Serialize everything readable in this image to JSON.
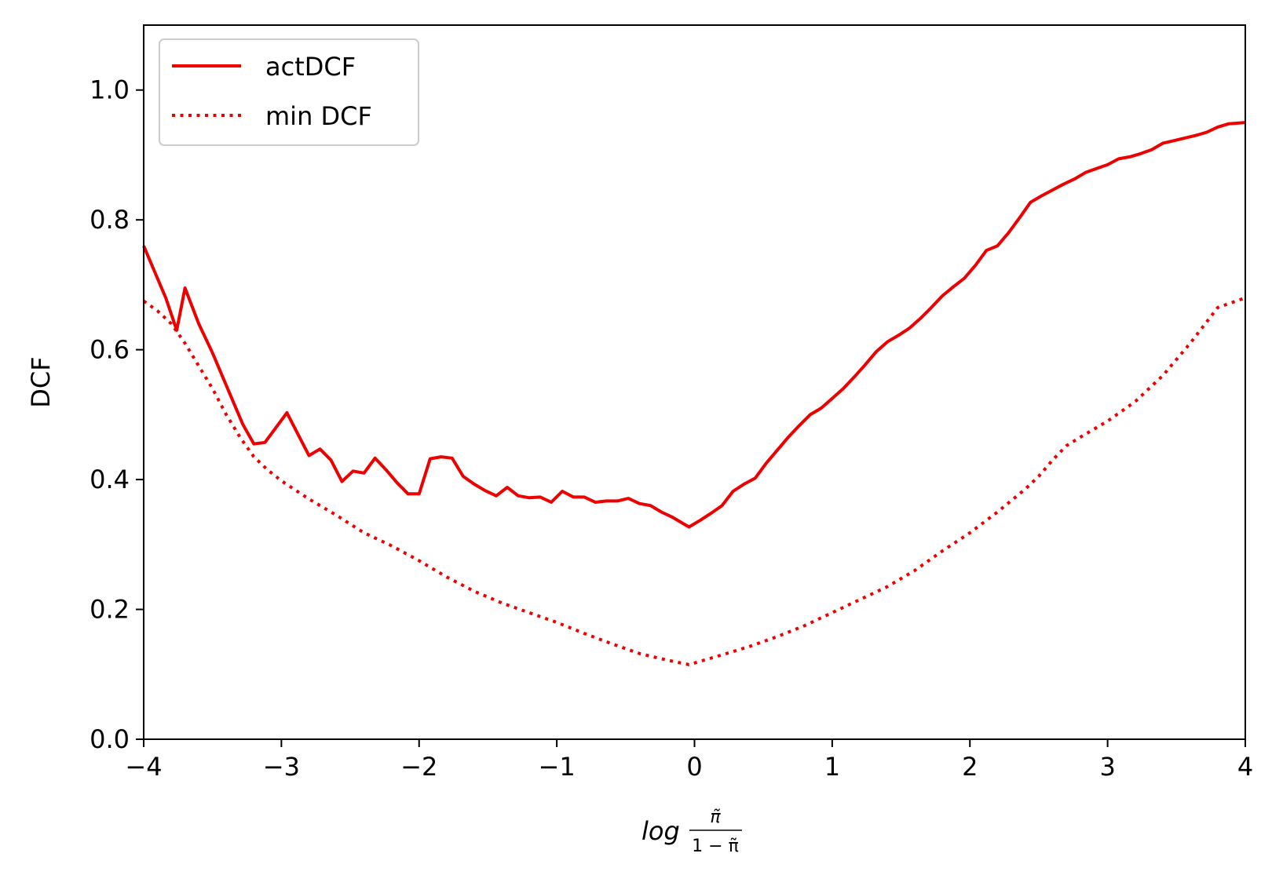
{
  "chart_data": {
    "type": "line",
    "xlabel": "log π̃ / (1 − π̃)",
    "xlabel_parts": {
      "base": "log",
      "numerator": "π̃",
      "denominator": "1 − π̃"
    },
    "ylabel": "DCF",
    "xlim": [
      -4,
      4
    ],
    "ylim": [
      0,
      1.1
    ],
    "x_ticks": [
      -4,
      -3,
      -2,
      -1,
      0,
      1,
      2,
      3,
      4
    ],
    "x_tick_labels": [
      "−4",
      "−3",
      "−2",
      "−1",
      "0",
      "1",
      "2",
      "3",
      "4"
    ],
    "y_ticks": [
      0.0,
      0.2,
      0.4,
      0.6,
      0.8,
      1.0
    ],
    "y_tick_labels": [
      "0.0",
      "0.2",
      "0.4",
      "0.6",
      "0.8",
      "1.0"
    ],
    "grid": false,
    "legend_position": "top-left",
    "series": [
      {
        "name": "actDCF",
        "color": "#ee0000",
        "style": "solid",
        "points": [
          [
            -4.0,
            0.76
          ],
          [
            -3.92,
            0.72
          ],
          [
            -3.84,
            0.68
          ],
          [
            -3.76,
            0.63
          ],
          [
            -3.7,
            0.695
          ],
          [
            -3.6,
            0.64
          ],
          [
            -3.5,
            0.595
          ],
          [
            -3.44,
            0.565
          ],
          [
            -3.36,
            0.525
          ],
          [
            -3.28,
            0.485
          ],
          [
            -3.2,
            0.455
          ],
          [
            -3.12,
            0.457
          ],
          [
            -3.04,
            0.48
          ],
          [
            -2.96,
            0.503
          ],
          [
            -2.88,
            0.47
          ],
          [
            -2.8,
            0.437
          ],
          [
            -2.72,
            0.447
          ],
          [
            -2.64,
            0.43
          ],
          [
            -2.56,
            0.397
          ],
          [
            -2.48,
            0.413
          ],
          [
            -2.4,
            0.41
          ],
          [
            -2.32,
            0.433
          ],
          [
            -2.24,
            0.415
          ],
          [
            -2.16,
            0.395
          ],
          [
            -2.08,
            0.378
          ],
          [
            -2.0,
            0.378
          ],
          [
            -1.92,
            0.432
          ],
          [
            -1.84,
            0.435
          ],
          [
            -1.76,
            0.433
          ],
          [
            -1.68,
            0.405
          ],
          [
            -1.6,
            0.393
          ],
          [
            -1.52,
            0.383
          ],
          [
            -1.44,
            0.375
          ],
          [
            -1.36,
            0.388
          ],
          [
            -1.28,
            0.375
          ],
          [
            -1.2,
            0.372
          ],
          [
            -1.12,
            0.373
          ],
          [
            -1.04,
            0.365
          ],
          [
            -0.96,
            0.382
          ],
          [
            -0.88,
            0.373
          ],
          [
            -0.8,
            0.373
          ],
          [
            -0.72,
            0.365
          ],
          [
            -0.64,
            0.367
          ],
          [
            -0.56,
            0.367
          ],
          [
            -0.48,
            0.371
          ],
          [
            -0.4,
            0.363
          ],
          [
            -0.32,
            0.36
          ],
          [
            -0.24,
            0.35
          ],
          [
            -0.16,
            0.342
          ],
          [
            -0.04,
            0.327
          ],
          [
            0.04,
            0.337
          ],
          [
            0.12,
            0.348
          ],
          [
            0.2,
            0.36
          ],
          [
            0.28,
            0.382
          ],
          [
            0.36,
            0.393
          ],
          [
            0.44,
            0.402
          ],
          [
            0.52,
            0.425
          ],
          [
            0.6,
            0.445
          ],
          [
            0.68,
            0.465
          ],
          [
            0.76,
            0.483
          ],
          [
            0.84,
            0.5
          ],
          [
            0.92,
            0.51
          ],
          [
            1.0,
            0.525
          ],
          [
            1.08,
            0.54
          ],
          [
            1.16,
            0.558
          ],
          [
            1.24,
            0.577
          ],
          [
            1.32,
            0.597
          ],
          [
            1.4,
            0.612
          ],
          [
            1.48,
            0.622
          ],
          [
            1.56,
            0.633
          ],
          [
            1.64,
            0.648
          ],
          [
            1.72,
            0.665
          ],
          [
            1.8,
            0.683
          ],
          [
            1.88,
            0.697
          ],
          [
            1.96,
            0.71
          ],
          [
            2.04,
            0.73
          ],
          [
            2.12,
            0.753
          ],
          [
            2.2,
            0.76
          ],
          [
            2.28,
            0.78
          ],
          [
            2.36,
            0.803
          ],
          [
            2.44,
            0.827
          ],
          [
            2.52,
            0.837
          ],
          [
            2.6,
            0.846
          ],
          [
            2.68,
            0.855
          ],
          [
            2.76,
            0.863
          ],
          [
            2.84,
            0.873
          ],
          [
            2.92,
            0.879
          ],
          [
            3.0,
            0.885
          ],
          [
            3.08,
            0.894
          ],
          [
            3.16,
            0.897
          ],
          [
            3.24,
            0.902
          ],
          [
            3.32,
            0.908
          ],
          [
            3.4,
            0.918
          ],
          [
            3.48,
            0.922
          ],
          [
            3.56,
            0.926
          ],
          [
            3.64,
            0.93
          ],
          [
            3.72,
            0.935
          ],
          [
            3.8,
            0.943
          ],
          [
            3.88,
            0.948
          ],
          [
            4.0,
            0.95
          ]
        ]
      },
      {
        "name": "min DCF",
        "color": "#ee0000",
        "style": "dotted",
        "points": [
          [
            -4.0,
            0.675
          ],
          [
            -3.9,
            0.66
          ],
          [
            -3.8,
            0.64
          ],
          [
            -3.7,
            0.61
          ],
          [
            -3.6,
            0.575
          ],
          [
            -3.5,
            0.54
          ],
          [
            -3.4,
            0.5
          ],
          [
            -3.3,
            0.465
          ],
          [
            -3.2,
            0.435
          ],
          [
            -3.1,
            0.415
          ],
          [
            -3.0,
            0.398
          ],
          [
            -2.8,
            0.37
          ],
          [
            -2.6,
            0.345
          ],
          [
            -2.4,
            0.318
          ],
          [
            -2.2,
            0.298
          ],
          [
            -2.0,
            0.275
          ],
          [
            -1.8,
            0.25
          ],
          [
            -1.6,
            0.228
          ],
          [
            -1.4,
            0.21
          ],
          [
            -1.2,
            0.195
          ],
          [
            -1.0,
            0.18
          ],
          [
            -0.8,
            0.163
          ],
          [
            -0.6,
            0.147
          ],
          [
            -0.4,
            0.132
          ],
          [
            -0.2,
            0.122
          ],
          [
            -0.04,
            0.115
          ],
          [
            0.2,
            0.13
          ],
          [
            0.4,
            0.143
          ],
          [
            0.6,
            0.158
          ],
          [
            0.8,
            0.175
          ],
          [
            1.0,
            0.195
          ],
          [
            1.2,
            0.215
          ],
          [
            1.4,
            0.235
          ],
          [
            1.6,
            0.26
          ],
          [
            1.8,
            0.29
          ],
          [
            2.0,
            0.318
          ],
          [
            2.2,
            0.35
          ],
          [
            2.4,
            0.385
          ],
          [
            2.5,
            0.405
          ],
          [
            2.6,
            0.43
          ],
          [
            2.7,
            0.452
          ],
          [
            2.8,
            0.465
          ],
          [
            3.0,
            0.49
          ],
          [
            3.2,
            0.52
          ],
          [
            3.4,
            0.56
          ],
          [
            3.6,
            0.61
          ],
          [
            3.8,
            0.665
          ],
          [
            4.0,
            0.68
          ]
        ]
      }
    ]
  }
}
